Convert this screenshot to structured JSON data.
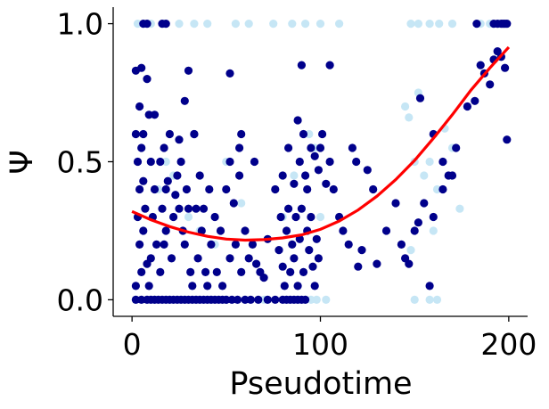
{
  "chart_data": {
    "type": "scatter",
    "xlabel": "Pseudotime",
    "ylabel": "Ψ",
    "xlim": [
      -10,
      210
    ],
    "ylim": [
      -0.06,
      1.06
    ],
    "xticks": [
      0,
      100,
      200
    ],
    "xtick_labels": [
      "0",
      "100",
      "200"
    ],
    "yticks": [
      0.0,
      0.5,
      1.0
    ],
    "ytick_labels": [
      "0.0",
      "0.5",
      "1.0"
    ],
    "grid": false,
    "colors": {
      "dark_points": "#00008b",
      "light_points": "#c6e6f5",
      "trend": "#ff0000"
    },
    "series": [
      {
        "style": "light",
        "points": [
          [
            3,
            1.0
          ],
          [
            10,
            1.0
          ],
          [
            17,
            1.0
          ],
          [
            25,
            1.0
          ],
          [
            33,
            1.0
          ],
          [
            40,
            1.0
          ],
          [
            55,
            1.0
          ],
          [
            62,
            1.0
          ],
          [
            75,
            1.0
          ],
          [
            85,
            1.0
          ],
          [
            92,
            1.0
          ],
          [
            100,
            1.0
          ],
          [
            110,
            1.0
          ],
          [
            148,
            1.0
          ],
          [
            152,
            1.0
          ],
          [
            158,
            1.0
          ],
          [
            163,
            1.0
          ],
          [
            170,
            1.0
          ],
          [
            185,
            1.0
          ],
          [
            190,
            1.0
          ],
          [
            195,
            1.0
          ],
          [
            2,
            0.0
          ],
          [
            12,
            0.0
          ],
          [
            20,
            0.0
          ],
          [
            28,
            0.0
          ],
          [
            42,
            0.0
          ],
          [
            50,
            0.0
          ],
          [
            60,
            0.0
          ],
          [
            70,
            0.0
          ],
          [
            88,
            0.0
          ],
          [
            95,
            0.0
          ],
          [
            98,
            0.0
          ],
          [
            103,
            0.0
          ],
          [
            150,
            0.0
          ],
          [
            158,
            0.0
          ],
          [
            162,
            0.0
          ],
          [
            5,
            0.55
          ],
          [
            14,
            0.4
          ],
          [
            18,
            0.5
          ],
          [
            22,
            0.45
          ],
          [
            30,
            0.3
          ],
          [
            36,
            0.25
          ],
          [
            44,
            0.2
          ],
          [
            50,
            0.5
          ],
          [
            58,
            0.35
          ],
          [
            80,
            0.3
          ],
          [
            86,
            0.45
          ],
          [
            94,
            0.6
          ],
          [
            97,
            0.55
          ],
          [
            100,
            0.3
          ],
          [
            145,
            0.7
          ],
          [
            147,
            0.66
          ],
          [
            150,
            0.5
          ],
          [
            152,
            0.75
          ],
          [
            155,
            0.45
          ],
          [
            158,
            0.5
          ],
          [
            162,
            0.4
          ],
          [
            166,
            0.62
          ],
          [
            170,
            0.55
          ],
          [
            174,
            0.33
          ],
          [
            148,
            0.18
          ],
          [
            160,
            0.25
          ]
        ]
      },
      {
        "style": "dark",
        "points": [
          [
            2,
            0.0
          ],
          [
            5,
            0.0
          ],
          [
            8,
            0.0
          ],
          [
            10,
            0.0
          ],
          [
            12,
            0.0
          ],
          [
            14,
            0.0
          ],
          [
            16,
            0.0
          ],
          [
            18,
            0.0
          ],
          [
            20,
            0.0
          ],
          [
            22,
            0.0
          ],
          [
            24,
            0.0
          ],
          [
            26,
            0.0
          ],
          [
            28,
            0.0
          ],
          [
            30,
            0.0
          ],
          [
            32,
            0.0
          ],
          [
            34,
            0.0
          ],
          [
            36,
            0.0
          ],
          [
            38,
            0.0
          ],
          [
            40,
            0.0
          ],
          [
            42,
            0.0
          ],
          [
            44,
            0.0
          ],
          [
            46,
            0.0
          ],
          [
            48,
            0.0
          ],
          [
            50,
            0.0
          ],
          [
            53,
            0.0
          ],
          [
            56,
            0.0
          ],
          [
            60,
            0.0
          ],
          [
            63,
            0.0
          ],
          [
            67,
            0.0
          ],
          [
            72,
            0.0
          ],
          [
            76,
            0.0
          ],
          [
            80,
            0.0
          ],
          [
            82,
            0.0
          ],
          [
            84,
            0.0
          ],
          [
            86,
            0.0
          ],
          [
            88,
            0.0
          ],
          [
            90,
            0.0
          ],
          [
            92,
            0.0
          ],
          [
            2,
            0.05
          ],
          [
            5,
            0.1
          ],
          [
            8,
            0.13
          ],
          [
            4,
            0.2
          ],
          [
            6,
            0.25
          ],
          [
            3,
            0.3
          ],
          [
            7,
            0.33
          ],
          [
            4,
            0.4
          ],
          [
            6,
            0.43
          ],
          [
            3,
            0.5
          ],
          [
            5,
            0.55
          ],
          [
            2,
            0.6
          ],
          [
            6,
            0.6
          ],
          [
            4,
            0.7
          ],
          [
            8,
            0.8
          ],
          [
            2,
            0.83
          ],
          [
            5,
            0.84
          ],
          [
            9,
            0.67
          ],
          [
            12,
            0.67
          ],
          [
            10,
            0.5
          ],
          [
            12,
            0.4
          ],
          [
            11,
            0.3
          ],
          [
            13,
            0.2
          ],
          [
            10,
            0.15
          ],
          [
            9,
            0.05
          ],
          [
            15,
            0.1
          ],
          [
            17,
            0.2
          ],
          [
            18,
            0.25
          ],
          [
            16,
            0.33
          ],
          [
            19,
            0.43
          ],
          [
            15,
            0.5
          ],
          [
            17,
            0.55
          ],
          [
            20,
            0.6
          ],
          [
            18,
            0.4
          ],
          [
            22,
            0.3
          ],
          [
            21,
            0.15
          ],
          [
            23,
            0.38
          ],
          [
            24,
            0.45
          ],
          [
            25,
            0.33
          ],
          [
            26,
            0.5
          ],
          [
            27,
            0.25
          ],
          [
            28,
            0.2
          ],
          [
            29,
            0.4
          ],
          [
            30,
            0.33
          ],
          [
            31,
            0.1
          ],
          [
            32,
            0.05
          ],
          [
            33,
            0.6
          ],
          [
            34,
            0.33
          ],
          [
            35,
            0.15
          ],
          [
            36,
            0.45
          ],
          [
            37,
            0.25
          ],
          [
            38,
            0.33
          ],
          [
            39,
            0.1
          ],
          [
            40,
            0.05
          ],
          [
            41,
            0.4
          ],
          [
            42,
            0.2
          ],
          [
            44,
            0.3
          ],
          [
            45,
            0.1
          ],
          [
            47,
            0.25
          ],
          [
            48,
            0.05
          ],
          [
            50,
            0.4
          ],
          [
            52,
            0.15
          ],
          [
            54,
            0.35
          ],
          [
            55,
            0.2
          ],
          [
            57,
            0.45
          ],
          [
            58,
            0.1
          ],
          [
            60,
            0.25
          ],
          [
            62,
            0.15
          ],
          [
            64,
            0.2
          ],
          [
            66,
            0.13
          ],
          [
            68,
            0.1
          ],
          [
            70,
            0.08
          ],
          [
            72,
            0.22
          ],
          [
            25,
            0.58
          ],
          [
            28,
            0.72
          ],
          [
            30,
            0.83
          ],
          [
            33,
            0.6
          ],
          [
            52,
            0.82
          ],
          [
            52,
            0.5
          ],
          [
            57,
            0.55
          ],
          [
            58,
            0.6
          ],
          [
            65,
            0.5
          ],
          [
            78,
            0.18
          ],
          [
            79,
            0.3
          ],
          [
            80,
            0.12
          ],
          [
            81,
            0.05
          ],
          [
            82,
            0.25
          ],
          [
            83,
            0.33
          ],
          [
            84,
            0.1
          ],
          [
            85,
            0.2
          ],
          [
            86,
            0.15
          ],
          [
            87,
            0.3
          ],
          [
            88,
            0.05
          ],
          [
            89,
            0.22
          ],
          [
            90,
            0.33
          ],
          [
            91,
            0.1
          ],
          [
            92,
            0.45
          ],
          [
            93,
            0.25
          ],
          [
            94,
            0.18
          ],
          [
            95,
            0.3
          ],
          [
            96,
            0.12
          ],
          [
            97,
            0.05
          ],
          [
            98,
            0.22
          ],
          [
            99,
            0.15
          ],
          [
            76,
            0.4
          ],
          [
            80,
            0.45
          ],
          [
            83,
            0.55
          ],
          [
            86,
            0.42
          ],
          [
            89,
            0.5
          ],
          [
            91,
            0.6
          ],
          [
            93,
            0.4
          ],
          [
            95,
            0.55
          ],
          [
            88,
            0.65
          ],
          [
            97,
            0.52
          ],
          [
            99,
            0.47
          ],
          [
            100,
            0.55
          ],
          [
            101,
            0.6
          ],
          [
            103,
            0.42
          ],
          [
            105,
            0.5
          ],
          [
            107,
            0.4
          ],
          [
            110,
            0.3
          ],
          [
            112,
            0.25
          ],
          [
            115,
            0.2
          ],
          [
            117,
            0.55
          ],
          [
            119,
            0.5
          ],
          [
            105,
            0.85
          ],
          [
            90,
            0.85
          ],
          [
            125,
            0.47
          ],
          [
            128,
            0.4
          ],
          [
            130,
            0.13
          ],
          [
            135,
            0.25
          ],
          [
            120,
            0.12
          ],
          [
            122,
            0.18
          ],
          [
            140,
            0.35
          ],
          [
            143,
            0.2
          ],
          [
            145,
            0.15
          ],
          [
            147,
            0.13
          ],
          [
            150,
            0.25
          ],
          [
            152,
            0.28
          ],
          [
            155,
            0.35
          ],
          [
            158,
            0.05
          ],
          [
            160,
            0.3
          ],
          [
            165,
            0.4
          ],
          [
            168,
            0.45
          ],
          [
            153,
            0.73
          ],
          [
            160,
            0.6
          ],
          [
            165,
            0.5
          ],
          [
            170,
            0.45
          ],
          [
            172,
            0.55
          ],
          [
            178,
            0.7
          ],
          [
            182,
            0.72
          ],
          [
            185,
            0.85
          ],
          [
            187,
            0.82
          ],
          [
            190,
            0.78
          ],
          [
            192,
            0.87
          ],
          [
            194,
            0.9
          ],
          [
            196,
            0.88
          ],
          [
            198,
            0.84
          ],
          [
            199,
            0.58
          ],
          [
            6,
            1.0
          ],
          [
            8,
            1.0
          ],
          [
            16,
            1.0
          ],
          [
            18,
            1.0
          ],
          [
            183,
            1.0
          ],
          [
            192,
            1.0
          ],
          [
            194,
            1.0
          ],
          [
            196,
            1.0
          ],
          [
            197,
            1.0
          ],
          [
            198,
            1.0
          ],
          [
            199,
            1.0
          ]
        ]
      }
    ],
    "trend": {
      "points": [
        [
          0,
          0.32
        ],
        [
          10,
          0.29
        ],
        [
          20,
          0.265
        ],
        [
          30,
          0.245
        ],
        [
          40,
          0.23
        ],
        [
          50,
          0.22
        ],
        [
          60,
          0.216
        ],
        [
          70,
          0.218
        ],
        [
          80,
          0.224
        ],
        [
          90,
          0.235
        ],
        [
          100,
          0.255
        ],
        [
          110,
          0.285
        ],
        [
          120,
          0.325
        ],
        [
          130,
          0.375
        ],
        [
          140,
          0.435
        ],
        [
          150,
          0.505
        ],
        [
          160,
          0.585
        ],
        [
          170,
          0.67
        ],
        [
          180,
          0.76
        ],
        [
          190,
          0.84
        ],
        [
          200,
          0.915
        ]
      ]
    }
  }
}
